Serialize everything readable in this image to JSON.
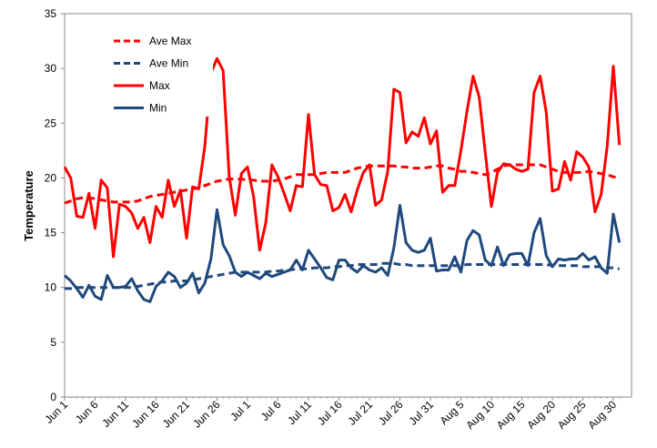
{
  "chart_data": {
    "type": "line",
    "title": "",
    "xlabel": "",
    "ylabel": "Temperature",
    "ylim": [
      0,
      35
    ],
    "yticks": [
      0,
      5,
      10,
      15,
      20,
      25,
      30,
      35
    ],
    "grid": false,
    "legend_position": "top-left",
    "x_tick_labels": [
      "Jun 1",
      "Jun 6",
      "Jun 11",
      "Jun 16",
      "Jun 21",
      "Jun 26",
      "Jul 1",
      "Jul 6",
      "Jul 11",
      "Jul 16",
      "Jul 21",
      "Jul 26",
      "Jul 31",
      "Aug 5",
      "Aug 10",
      "Aug 15",
      "Aug 20",
      "Aug 25",
      "Aug 30"
    ],
    "x_tick_step_days": 5,
    "x": [
      "Jun 1",
      "Jun 2",
      "Jun 3",
      "Jun 4",
      "Jun 5",
      "Jun 6",
      "Jun 7",
      "Jun 8",
      "Jun 9",
      "Jun 10",
      "Jun 11",
      "Jun 12",
      "Jun 13",
      "Jun 14",
      "Jun 15",
      "Jun 16",
      "Jun 17",
      "Jun 18",
      "Jun 19",
      "Jun 20",
      "Jun 21",
      "Jun 22",
      "Jun 23",
      "Jun 24",
      "Jun 25",
      "Jun 26",
      "Jun 27",
      "Jun 28",
      "Jun 29",
      "Jun 30",
      "Jul 1",
      "Jul 2",
      "Jul 3",
      "Jul 4",
      "Jul 5",
      "Jul 6",
      "Jul 7",
      "Jul 8",
      "Jul 9",
      "Jul 10",
      "Jul 11",
      "Jul 12",
      "Jul 13",
      "Jul 14",
      "Jul 15",
      "Jul 16",
      "Jul 17",
      "Jul 18",
      "Jul 19",
      "Jul 20",
      "Jul 21",
      "Jul 22",
      "Jul 23",
      "Jul 24",
      "Jul 25",
      "Jul 26",
      "Jul 27",
      "Jul 28",
      "Jul 29",
      "Jul 30",
      "Jul 31",
      "Aug 1",
      "Aug 2",
      "Aug 3",
      "Aug 4",
      "Aug 5",
      "Aug 6",
      "Aug 7",
      "Aug 8",
      "Aug 9",
      "Aug 10",
      "Aug 11",
      "Aug 12",
      "Aug 13",
      "Aug 14",
      "Aug 15",
      "Aug 16",
      "Aug 17",
      "Aug 18",
      "Aug 19",
      "Aug 20",
      "Aug 21",
      "Aug 22",
      "Aug 23",
      "Aug 24",
      "Aug 25",
      "Aug 26",
      "Aug 27",
      "Aug 28",
      "Aug 29",
      "Aug 30",
      "Aug 31"
    ],
    "series": [
      {
        "name": "Ave Max",
        "color": "#ff0000",
        "style": "dashed",
        "values": [
          17.7,
          17.9,
          18.1,
          18.2,
          18.2,
          18.1,
          18.0,
          17.9,
          17.8,
          17.8,
          17.8,
          17.8,
          17.9,
          18.1,
          18.3,
          18.4,
          18.5,
          18.6,
          18.7,
          18.8,
          18.9,
          19.0,
          19.1,
          19.3,
          19.5,
          19.7,
          19.8,
          19.9,
          19.9,
          19.9,
          19.8,
          19.8,
          19.7,
          19.7,
          19.7,
          19.8,
          19.9,
          20.1,
          20.3,
          20.3,
          20.3,
          20.3,
          20.4,
          20.5,
          20.5,
          20.5,
          20.5,
          20.7,
          20.9,
          21.0,
          21.1,
          21.1,
          21.1,
          21.1,
          21.1,
          21.0,
          21.0,
          20.9,
          20.9,
          20.9,
          21.0,
          21.1,
          21.1,
          20.9,
          20.8,
          20.6,
          20.6,
          20.5,
          20.4,
          20.3,
          20.5,
          20.8,
          21.1,
          21.2,
          21.2,
          21.2,
          21.2,
          21.2,
          21.2,
          21.0,
          20.8,
          20.6,
          20.5,
          20.5,
          20.5,
          20.5,
          20.6,
          20.5,
          20.4,
          20.3,
          20.1,
          20.0
        ]
      },
      {
        "name": "Ave Min",
        "color": "#1f497d",
        "style": "dashed",
        "values": [
          9.9,
          9.9,
          10.0,
          10.0,
          10.0,
          10.0,
          10.0,
          10.0,
          10.0,
          10.0,
          10.0,
          10.0,
          10.1,
          10.2,
          10.3,
          10.4,
          10.5,
          10.5,
          10.6,
          10.6,
          10.6,
          10.7,
          10.8,
          10.9,
          11.0,
          11.1,
          11.2,
          11.3,
          11.4,
          11.4,
          11.4,
          11.4,
          11.4,
          11.4,
          11.5,
          11.5,
          11.6,
          11.6,
          11.7,
          11.7,
          11.7,
          11.8,
          11.8,
          11.8,
          11.9,
          11.9,
          12.0,
          12.0,
          12.1,
          12.1,
          12.1,
          12.1,
          12.2,
          12.2,
          12.2,
          12.1,
          12.1,
          12.0,
          12.0,
          12.0,
          12.0,
          12.0,
          12.0,
          12.0,
          12.0,
          12.0,
          12.1,
          12.1,
          12.1,
          12.1,
          12.1,
          12.1,
          12.1,
          12.1,
          12.1,
          12.1,
          12.1,
          12.1,
          12.1,
          12.1,
          12.0,
          12.0,
          12.0,
          12.0,
          12.0,
          11.9,
          11.9,
          11.9,
          11.9,
          11.8,
          11.8,
          11.7
        ]
      },
      {
        "name": "Max",
        "color": "#ff0000",
        "style": "solid",
        "values": [
          21.0,
          20.0,
          16.5,
          16.4,
          18.6,
          15.4,
          19.8,
          19.1,
          12.8,
          17.6,
          17.4,
          16.8,
          15.4,
          16.4,
          14.1,
          17.4,
          16.4,
          19.8,
          17.4,
          18.9,
          14.5,
          19.2,
          19.0,
          22.9,
          29.6,
          30.9,
          29.8,
          20.1,
          16.6,
          20.4,
          21.0,
          18.3,
          13.4,
          15.9,
          21.2,
          20.1,
          18.6,
          17.0,
          19.3,
          19.2,
          25.8,
          20.3,
          19.4,
          19.3,
          17.0,
          17.3,
          18.5,
          16.9,
          18.9,
          20.5,
          21.2,
          17.5,
          18.0,
          20.6,
          28.1,
          27.8,
          23.2,
          24.2,
          23.8,
          25.5,
          23.1,
          24.3,
          18.7,
          19.3,
          19.3,
          22.5,
          26.1,
          29.3,
          27.4,
          22.3,
          17.4,
          20.5,
          21.3,
          21.2,
          20.8,
          20.6,
          20.8,
          27.8,
          29.3,
          26.0,
          18.8,
          19.0,
          21.5,
          19.8,
          22.4,
          21.9,
          21.0,
          16.9,
          18.5,
          22.9,
          30.2,
          23.0
        ]
      },
      {
        "name": "Min",
        "color": "#1f497d",
        "style": "solid",
        "values": [
          11.1,
          10.6,
          9.9,
          9.1,
          10.2,
          9.2,
          8.9,
          11.1,
          10.0,
          10.0,
          10.1,
          10.8,
          9.7,
          8.9,
          8.7,
          10.1,
          10.6,
          11.4,
          11.0,
          10.0,
          10.4,
          11.3,
          9.5,
          10.4,
          12.6,
          17.1,
          13.9,
          12.9,
          11.4,
          11.0,
          11.4,
          11.1,
          10.8,
          11.3,
          11.0,
          11.2,
          11.4,
          11.6,
          12.5,
          11.6,
          13.4,
          12.6,
          11.8,
          10.9,
          10.7,
          12.5,
          12.5,
          11.8,
          11.4,
          12.0,
          11.6,
          11.4,
          11.8,
          11.1,
          13.6,
          17.5,
          14.1,
          13.4,
          13.2,
          13.4,
          14.5,
          11.5,
          11.6,
          11.6,
          12.8,
          11.4,
          14.3,
          15.2,
          14.8,
          12.5,
          12.0,
          13.7,
          12.0,
          13.0,
          13.1,
          13.1,
          12.0,
          15.0,
          16.3,
          12.9,
          11.9,
          12.6,
          12.5,
          12.6,
          12.6,
          13.1,
          12.5,
          12.8,
          11.8,
          11.3,
          16.7,
          14.1
        ]
      }
    ]
  }
}
